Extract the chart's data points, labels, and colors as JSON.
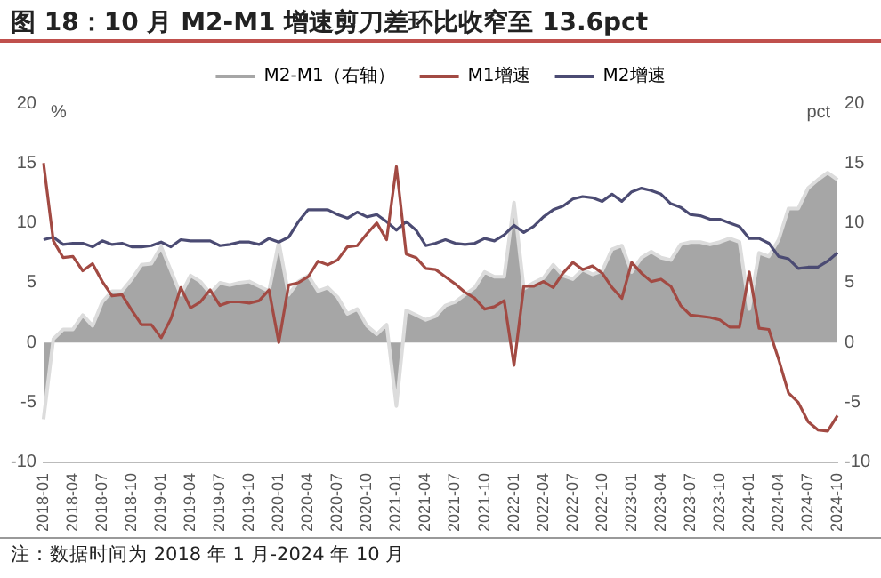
{
  "chart_data": {
    "type": "line",
    "title": "图 18：10 月 M2-M1 增速剪刀差环比收窄至 13.6pct",
    "ylabel": "%",
    "y2label": "pct",
    "categories": [
      "2018-01",
      null,
      null,
      "2018-04",
      null,
      null,
      "2018-07",
      null,
      null,
      "2018-10",
      null,
      null,
      "2019-01",
      null,
      null,
      "2019-04",
      null,
      null,
      "2019-07",
      null,
      null,
      "2019-10",
      null,
      null,
      "2020-01",
      null,
      null,
      "2020-04",
      null,
      null,
      "2020-07",
      null,
      null,
      "2020-10",
      null,
      null,
      "2021-01",
      null,
      null,
      "2021-04",
      null,
      null,
      "2021-07",
      null,
      null,
      "2021-10",
      null,
      null,
      "2022-01",
      null,
      null,
      "2022-04",
      null,
      null,
      "2022-07",
      null,
      null,
      "2022-10",
      null,
      null,
      "2023-01",
      null,
      null,
      "2023-04",
      null,
      null,
      "2023-07",
      null,
      null,
      "2023-10",
      null,
      null,
      "2024-01",
      null,
      null,
      "2024-04",
      null,
      null,
      "2024-07",
      null,
      null,
      "2024-10"
    ],
    "series": [
      {
        "name": "M2-M1（右轴）",
        "type": "area",
        "axis": "y2",
        "color": "#a6a6a6",
        "values": [
          -6.4,
          0.3,
          1.1,
          1.1,
          2.3,
          1.4,
          3.4,
          4.3,
          4.3,
          5.3,
          6.5,
          6.6,
          8.0,
          6.0,
          4.0,
          5.6,
          5.1,
          4.1,
          5.0,
          4.8,
          5.0,
          5.1,
          4.7,
          4.3,
          8.4,
          4.0,
          5.1,
          5.6,
          4.3,
          4.6,
          3.8,
          2.4,
          2.8,
          1.4,
          0.7,
          1.5,
          -5.3,
          2.7,
          2.3,
          1.9,
          2.2,
          3.1,
          3.4,
          4.0,
          4.6,
          5.9,
          5.5,
          5.5,
          11.7,
          4.5,
          5.0,
          5.4,
          6.5,
          5.6,
          5.3,
          6.1,
          5.7,
          6.0,
          7.8,
          8.1,
          5.9,
          7.1,
          7.6,
          7.1,
          6.9,
          8.2,
          8.4,
          8.4,
          8.2,
          8.4,
          8.7,
          8.4,
          2.8,
          7.5,
          7.2,
          8.6,
          11.2,
          11.2,
          12.9,
          13.6,
          14.2,
          13.6
        ]
      },
      {
        "name": "M1增速",
        "type": "line",
        "color": "#a24a43",
        "values": [
          15.0,
          8.5,
          7.1,
          7.2,
          6.0,
          6.6,
          5.1,
          3.9,
          4.0,
          2.7,
          1.5,
          1.5,
          0.4,
          2.0,
          4.6,
          2.9,
          3.4,
          4.4,
          3.1,
          3.4,
          3.4,
          3.3,
          3.5,
          4.4,
          0.0,
          4.8,
          5.0,
          5.5,
          6.8,
          6.5,
          6.9,
          8.0,
          8.1,
          9.1,
          10.0,
          8.6,
          14.7,
          7.4,
          7.1,
          6.2,
          6.1,
          5.5,
          4.9,
          4.2,
          3.7,
          2.8,
          3.0,
          3.5,
          -1.9,
          4.7,
          4.7,
          5.1,
          4.6,
          5.8,
          6.7,
          6.1,
          6.4,
          5.8,
          4.6,
          3.7,
          6.7,
          5.8,
          5.1,
          5.3,
          4.7,
          3.1,
          2.3,
          2.2,
          2.1,
          1.9,
          1.3,
          1.3,
          5.9,
          1.2,
          1.1,
          -1.4,
          -4.2,
          -5.0,
          -6.6,
          -7.3,
          -7.4,
          -6.1
        ]
      },
      {
        "name": "M2增速",
        "type": "line",
        "color": "#4b4b73",
        "values": [
          8.6,
          8.8,
          8.2,
          8.3,
          8.3,
          8.0,
          8.5,
          8.2,
          8.3,
          8.0,
          8.0,
          8.1,
          8.4,
          8.0,
          8.6,
          8.5,
          8.5,
          8.5,
          8.1,
          8.2,
          8.4,
          8.4,
          8.2,
          8.7,
          8.4,
          8.8,
          10.1,
          11.1,
          11.1,
          11.1,
          10.7,
          10.4,
          10.9,
          10.5,
          10.7,
          10.1,
          9.4,
          10.1,
          9.4,
          8.1,
          8.3,
          8.6,
          8.3,
          8.2,
          8.3,
          8.7,
          8.5,
          9.0,
          9.8,
          9.2,
          9.7,
          10.5,
          11.1,
          11.4,
          12.0,
          12.2,
          12.1,
          11.8,
          12.4,
          11.8,
          12.6,
          12.9,
          12.7,
          12.4,
          11.6,
          11.3,
          10.7,
          10.6,
          10.3,
          10.3,
          10.0,
          9.7,
          8.7,
          8.7,
          8.3,
          7.2,
          7.0,
          6.2,
          6.3,
          6.3,
          6.8,
          7.5
        ]
      }
    ],
    "ylim": [
      -10,
      20
    ],
    "yticks": [
      -10,
      -5,
      0,
      5,
      10,
      15,
      20
    ],
    "y2lim": [
      -10,
      20
    ],
    "y2ticks": [
      -10,
      -5,
      0,
      5,
      10,
      15,
      20
    ],
    "grid": false,
    "legend": "top",
    "marker": "none",
    "line_style": "solid",
    "annotations": [
      "注：数据时间为 2018 年 1 月-2024 年 10 月"
    ]
  }
}
